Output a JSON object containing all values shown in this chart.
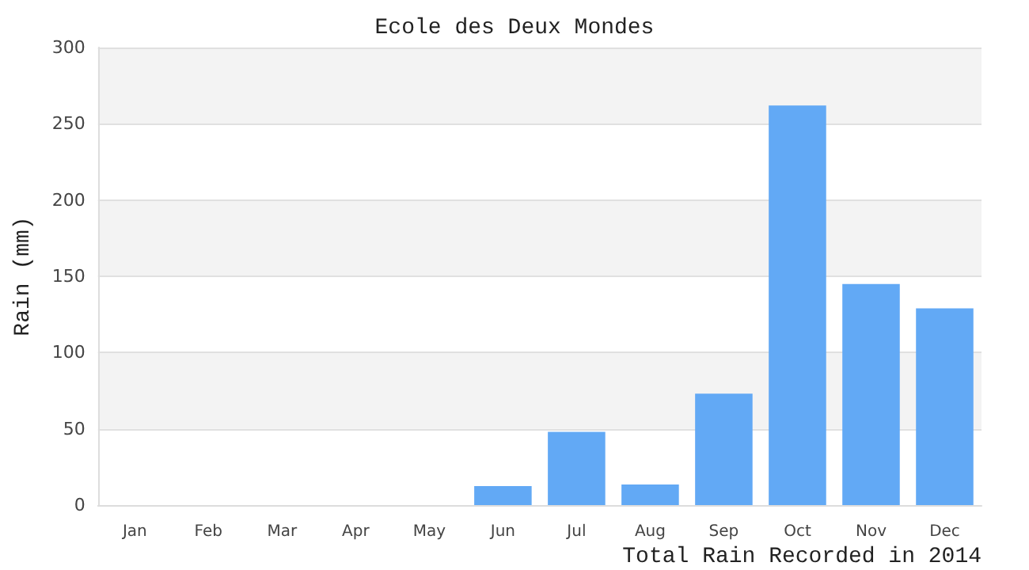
{
  "chart_data": {
    "type": "bar",
    "title": "Ecole des Deux Mondes",
    "xlabel": "Total Rain Recorded in 2014",
    "ylabel": "Rain (mm)",
    "categories": [
      "Jan",
      "Feb",
      "Mar",
      "Apr",
      "May",
      "Jun",
      "Jul",
      "Aug",
      "Sep",
      "Oct",
      "Nov",
      "Dec"
    ],
    "values": [
      0,
      0,
      0,
      0,
      0,
      12.5,
      48,
      13.5,
      73,
      262,
      145,
      129
    ],
    "color": "#62a9f5",
    "ylim": [
      0,
      300
    ],
    "yticks": [
      0,
      50,
      100,
      150,
      200,
      250,
      300
    ],
    "grid": "y"
  }
}
